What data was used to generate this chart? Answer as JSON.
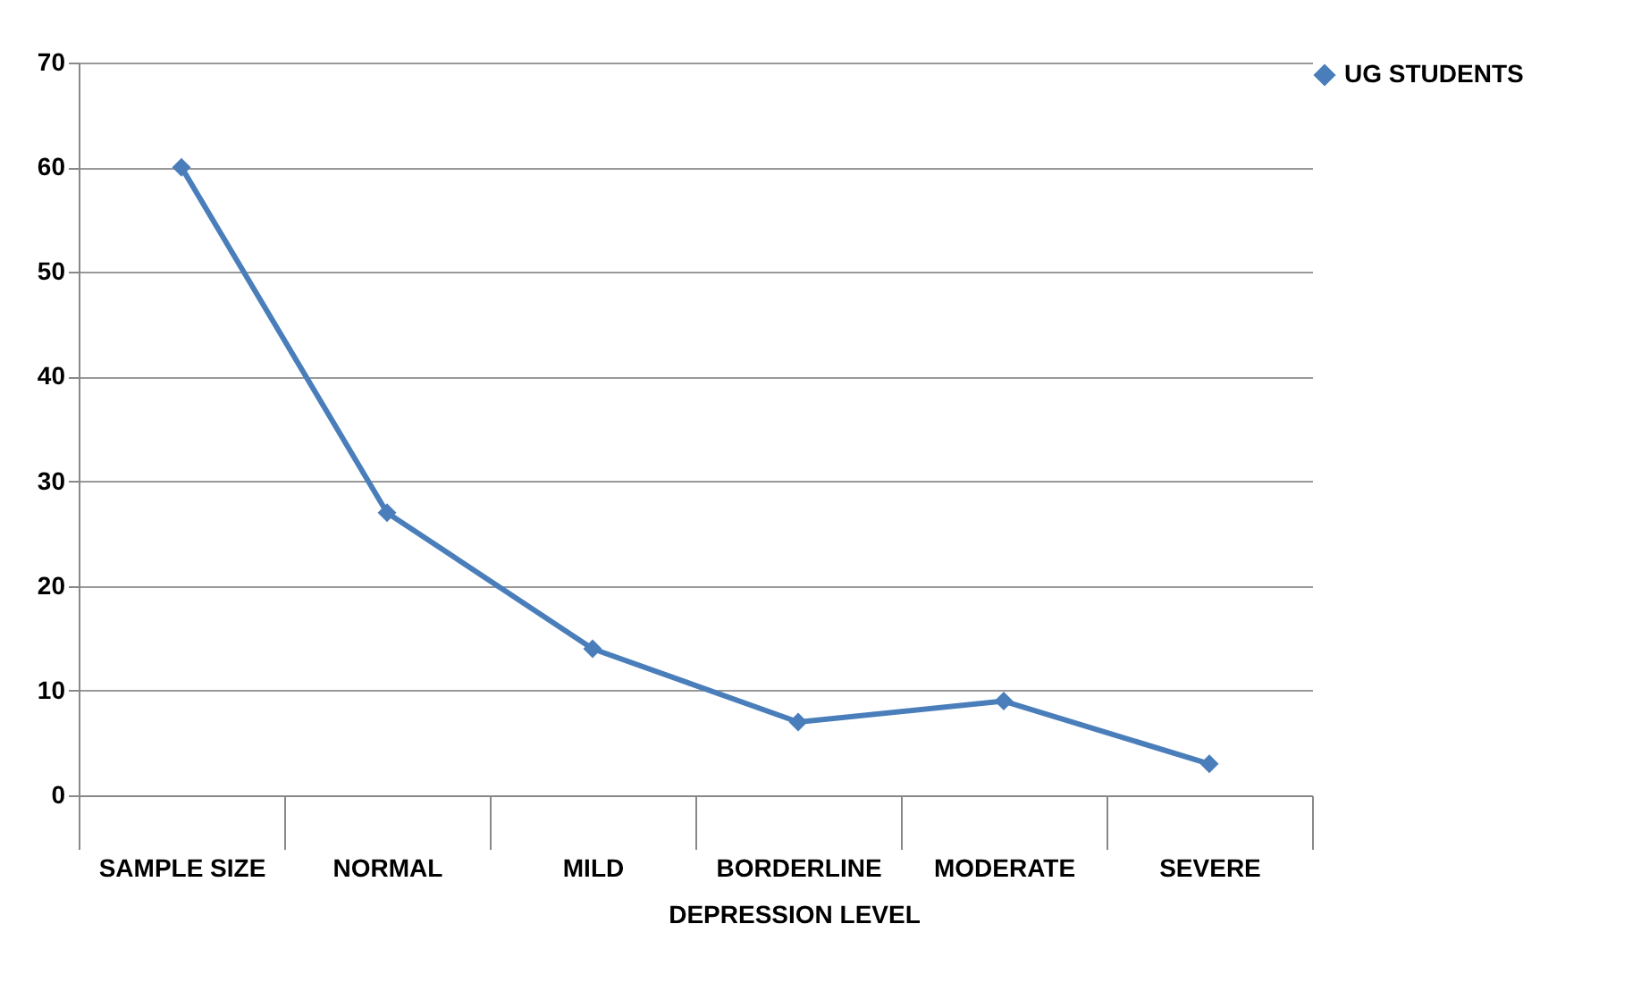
{
  "chart_data": {
    "type": "line",
    "xlabel": "DEPRESSION LEVEL",
    "categories": [
      "SAMPLE SIZE",
      "NORMAL",
      "MILD",
      "BORDERLINE",
      "MODERATE",
      "SEVERE"
    ],
    "series": [
      {
        "name": "UG STUDENTS",
        "color": "#4a7ebb",
        "values": [
          60,
          27,
          14,
          7,
          9,
          3
        ]
      }
    ],
    "ylim": [
      0,
      70
    ],
    "yticks": [
      0,
      10,
      20,
      30,
      40,
      50,
      60,
      70
    ],
    "grid": "y",
    "legend": "right",
    "marker": "diamond",
    "line_style": "solid"
  }
}
